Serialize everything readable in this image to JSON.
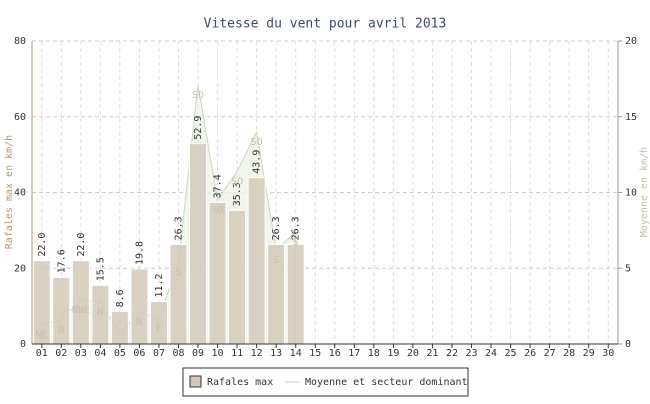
{
  "chart_data": {
    "type": "bar",
    "title": "Vitesse du vent pour avril 2013",
    "ylabel": "Rafales max en km/h",
    "y2label": "Moyenne en km/h",
    "categories": [
      "01",
      "02",
      "03",
      "04",
      "05",
      "06",
      "07",
      "08",
      "09",
      "10",
      "11",
      "12",
      "13",
      "14",
      "15",
      "16",
      "17",
      "18",
      "19",
      "20",
      "21",
      "22",
      "23",
      "24",
      "25",
      "26",
      "27",
      "28",
      "29",
      "30"
    ],
    "series": [
      {
        "name": "Rafales max",
        "color": "#d3c9b9",
        "values": [
          22.0,
          17.6,
          22.0,
          15.5,
          8.6,
          19.8,
          11.2,
          26.3,
          52.9,
          37.4,
          35.3,
          43.9,
          26.3,
          26.3,
          null,
          null,
          null,
          null,
          null,
          null,
          null,
          null,
          null,
          null,
          null,
          null,
          null,
          null,
          null,
          null
        ],
        "value_labels": [
          "22.0",
          "17.6",
          "22.0",
          "15.5",
          "8.6",
          "19.8",
          "11.2",
          "26.3",
          "52.9",
          "37.4",
          "35.3",
          "43.9",
          "26.3",
          "26.3",
          null,
          null,
          null,
          null,
          null,
          null,
          null,
          null,
          null,
          null,
          null,
          null,
          null,
          null,
          null,
          null
        ]
      },
      {
        "name": "Moyenne et secteur dominant",
        "color": "#c9d8c0",
        "axis": "y2",
        "values": [
          1.3,
          1.6,
          2.9,
          2.8,
          0.7,
          2.1,
          1.7,
          5.4,
          17.1,
          9.5,
          11.4,
          14.0,
          6.2,
          7.4,
          null,
          null,
          null,
          null,
          null,
          null,
          null,
          null,
          null,
          null,
          null,
          null,
          null,
          null,
          null,
          null
        ],
        "sectors": [
          "NE",
          "N",
          "NNE",
          "N",
          null,
          "N",
          "E",
          "S",
          "SO",
          "SO",
          "SO",
          "SO",
          "S",
          "S",
          null,
          null,
          null,
          null,
          null,
          null,
          null,
          null,
          null,
          null,
          null,
          null,
          null,
          null,
          null,
          null
        ]
      }
    ],
    "ylim": [
      0,
      80
    ],
    "yticks": [
      0,
      20,
      40,
      60,
      80
    ],
    "y2lim": [
      0,
      20
    ],
    "y2ticks": [
      0,
      5,
      10,
      15,
      20
    ],
    "grid": true,
    "legend": "bottom"
  }
}
